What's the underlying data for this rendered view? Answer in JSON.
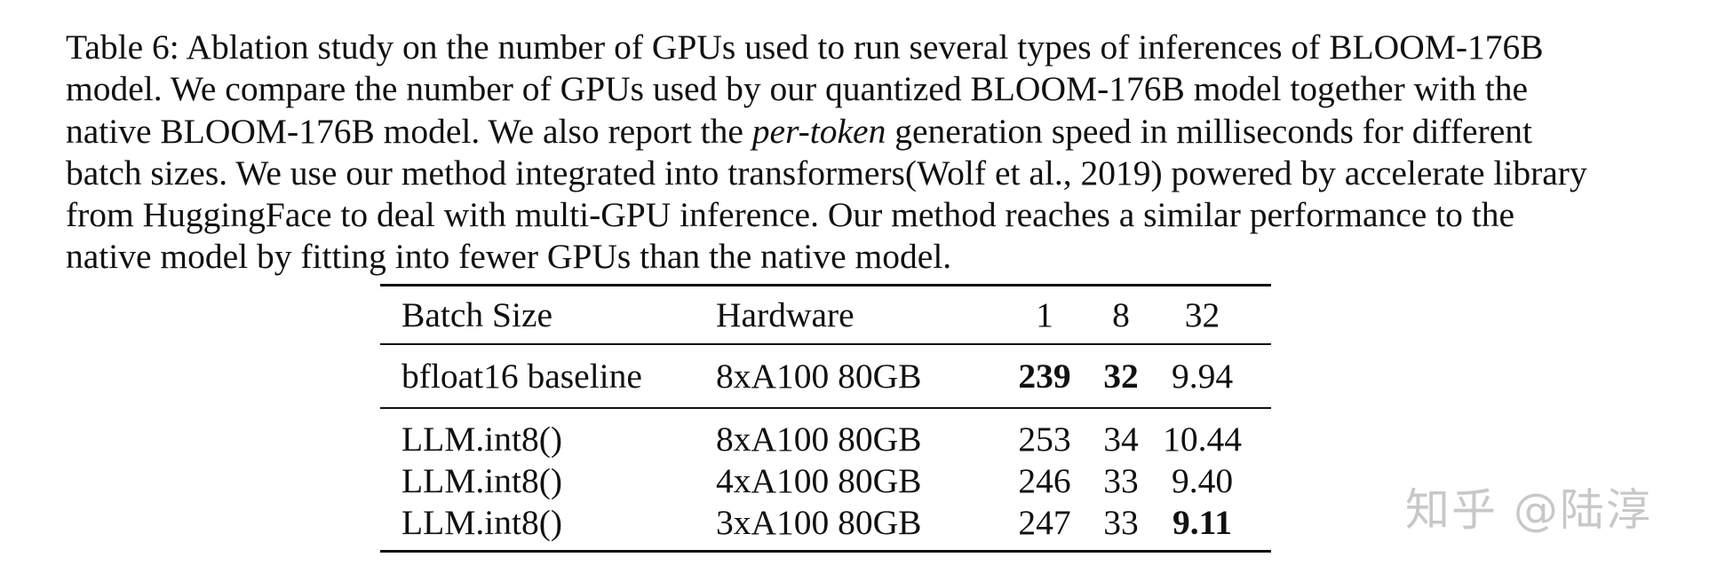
{
  "caption": {
    "part1": "Table 6: Ablation study on the number of GPUs used to run several types of inferences of BLOOM-176B model. We compare the number of GPUs used by our quantized BLOOM-176B model together with the native BLOOM-176B model. We also report the ",
    "emphasis": "per-token",
    "part2": " generation speed in milliseconds for different batch sizes. We use our method integrated into transformers(Wolf et al., 2019) powered by accelerate library from HuggingFace to deal with multi-GPU inference. Our method reaches a similar performance to the native model by fitting into fewer GPUs than the native model."
  },
  "table": {
    "headers": [
      "Batch Size",
      "Hardware",
      "1",
      "8",
      "32"
    ],
    "rows": [
      {
        "method": "bfloat16 baseline",
        "hardware": "8xA100 80GB",
        "b1": "239",
        "b8": "32",
        "b32": "9.94"
      },
      {
        "method": "LLM.int8()",
        "hardware": "8xA100 80GB",
        "b1": "253",
        "b8": "34",
        "b32": "10.44"
      },
      {
        "method": "LLM.int8()",
        "hardware": "4xA100 80GB",
        "b1": "246",
        "b8": "33",
        "b32": "9.40"
      },
      {
        "method": "LLM.int8()",
        "hardware": "3xA100 80GB",
        "b1": "247",
        "b8": "33",
        "b32": "9.11"
      }
    ]
  },
  "watermark": "知乎 @陆淳"
}
